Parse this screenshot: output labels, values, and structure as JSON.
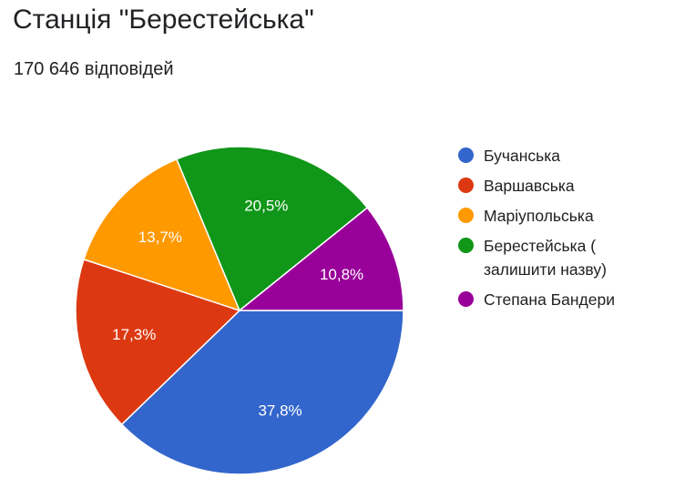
{
  "header": {
    "title": "Станція \"Берестейська\"",
    "responses": "170 646 відповідей"
  },
  "chart_data": {
    "type": "pie",
    "title": "Станція \"Берестейська\"",
    "subtitle": "170 646 відповідей",
    "legend_position": "right",
    "slices": [
      {
        "name": "Бучанська",
        "value": 37.8,
        "label": "37,8%",
        "color": "#3366cc"
      },
      {
        "name": "Варшавська",
        "value": 17.3,
        "label": "17,3%",
        "color": "#dc3912"
      },
      {
        "name": "Маріупольська",
        "value": 13.7,
        "label": "13,7%",
        "color": "#ff9900"
      },
      {
        "name": "Берестейська (\nзалишити назву)",
        "value": 20.5,
        "label": "20,5%",
        "color": "#109618"
      },
      {
        "name": "Степана Бандери",
        "value": 10.8,
        "label": "10,8%",
        "color": "#990099"
      }
    ]
  }
}
